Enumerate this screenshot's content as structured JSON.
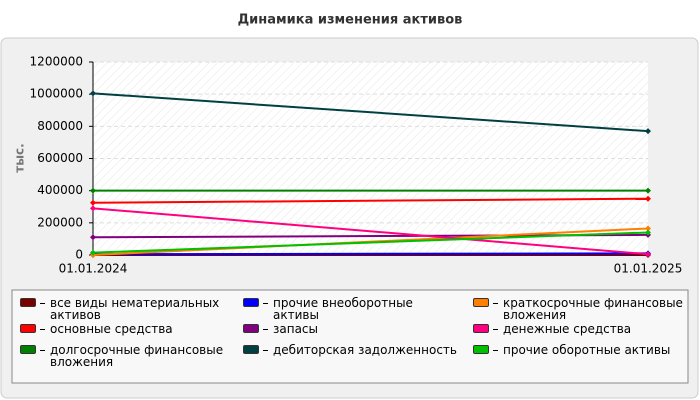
{
  "chart_data": {
    "type": "line",
    "title": "Динамика изменения активов",
    "y_label": "тыс.",
    "categories": [
      "01.01.2024",
      "01.01.2025"
    ],
    "ylim": [
      0,
      1200000
    ],
    "yticks": [
      0,
      200000,
      400000,
      600000,
      800000,
      1000000,
      1200000
    ],
    "grid": true,
    "series": [
      {
        "name": "все виды нематериальных активов",
        "color": "#7a0000",
        "values": [
          0,
          0
        ]
      },
      {
        "name": "основные средства",
        "color": "#ff0000",
        "values": [
          325000,
          350000
        ]
      },
      {
        "name": "долгосрочные финансовые вложения",
        "color": "#008000",
        "values": [
          400000,
          400000
        ]
      },
      {
        "name": "прочие внеоборотные активы",
        "color": "#0000ff",
        "values": [
          5000,
          10000
        ]
      },
      {
        "name": "запасы",
        "color": "#800080",
        "values": [
          110000,
          125000
        ]
      },
      {
        "name": "дебиторская задолженность",
        "color": "#004040",
        "values": [
          1005000,
          770000
        ]
      },
      {
        "name": "краткосрочные финансовые вложения",
        "color": "#ff8000",
        "values": [
          0,
          165000
        ]
      },
      {
        "name": "денежные средства",
        "color": "#ff0080",
        "values": [
          290000,
          5000
        ]
      },
      {
        "name": "прочие оборотные активы",
        "color": "#00c000",
        "values": [
          15000,
          140000
        ]
      }
    ]
  }
}
